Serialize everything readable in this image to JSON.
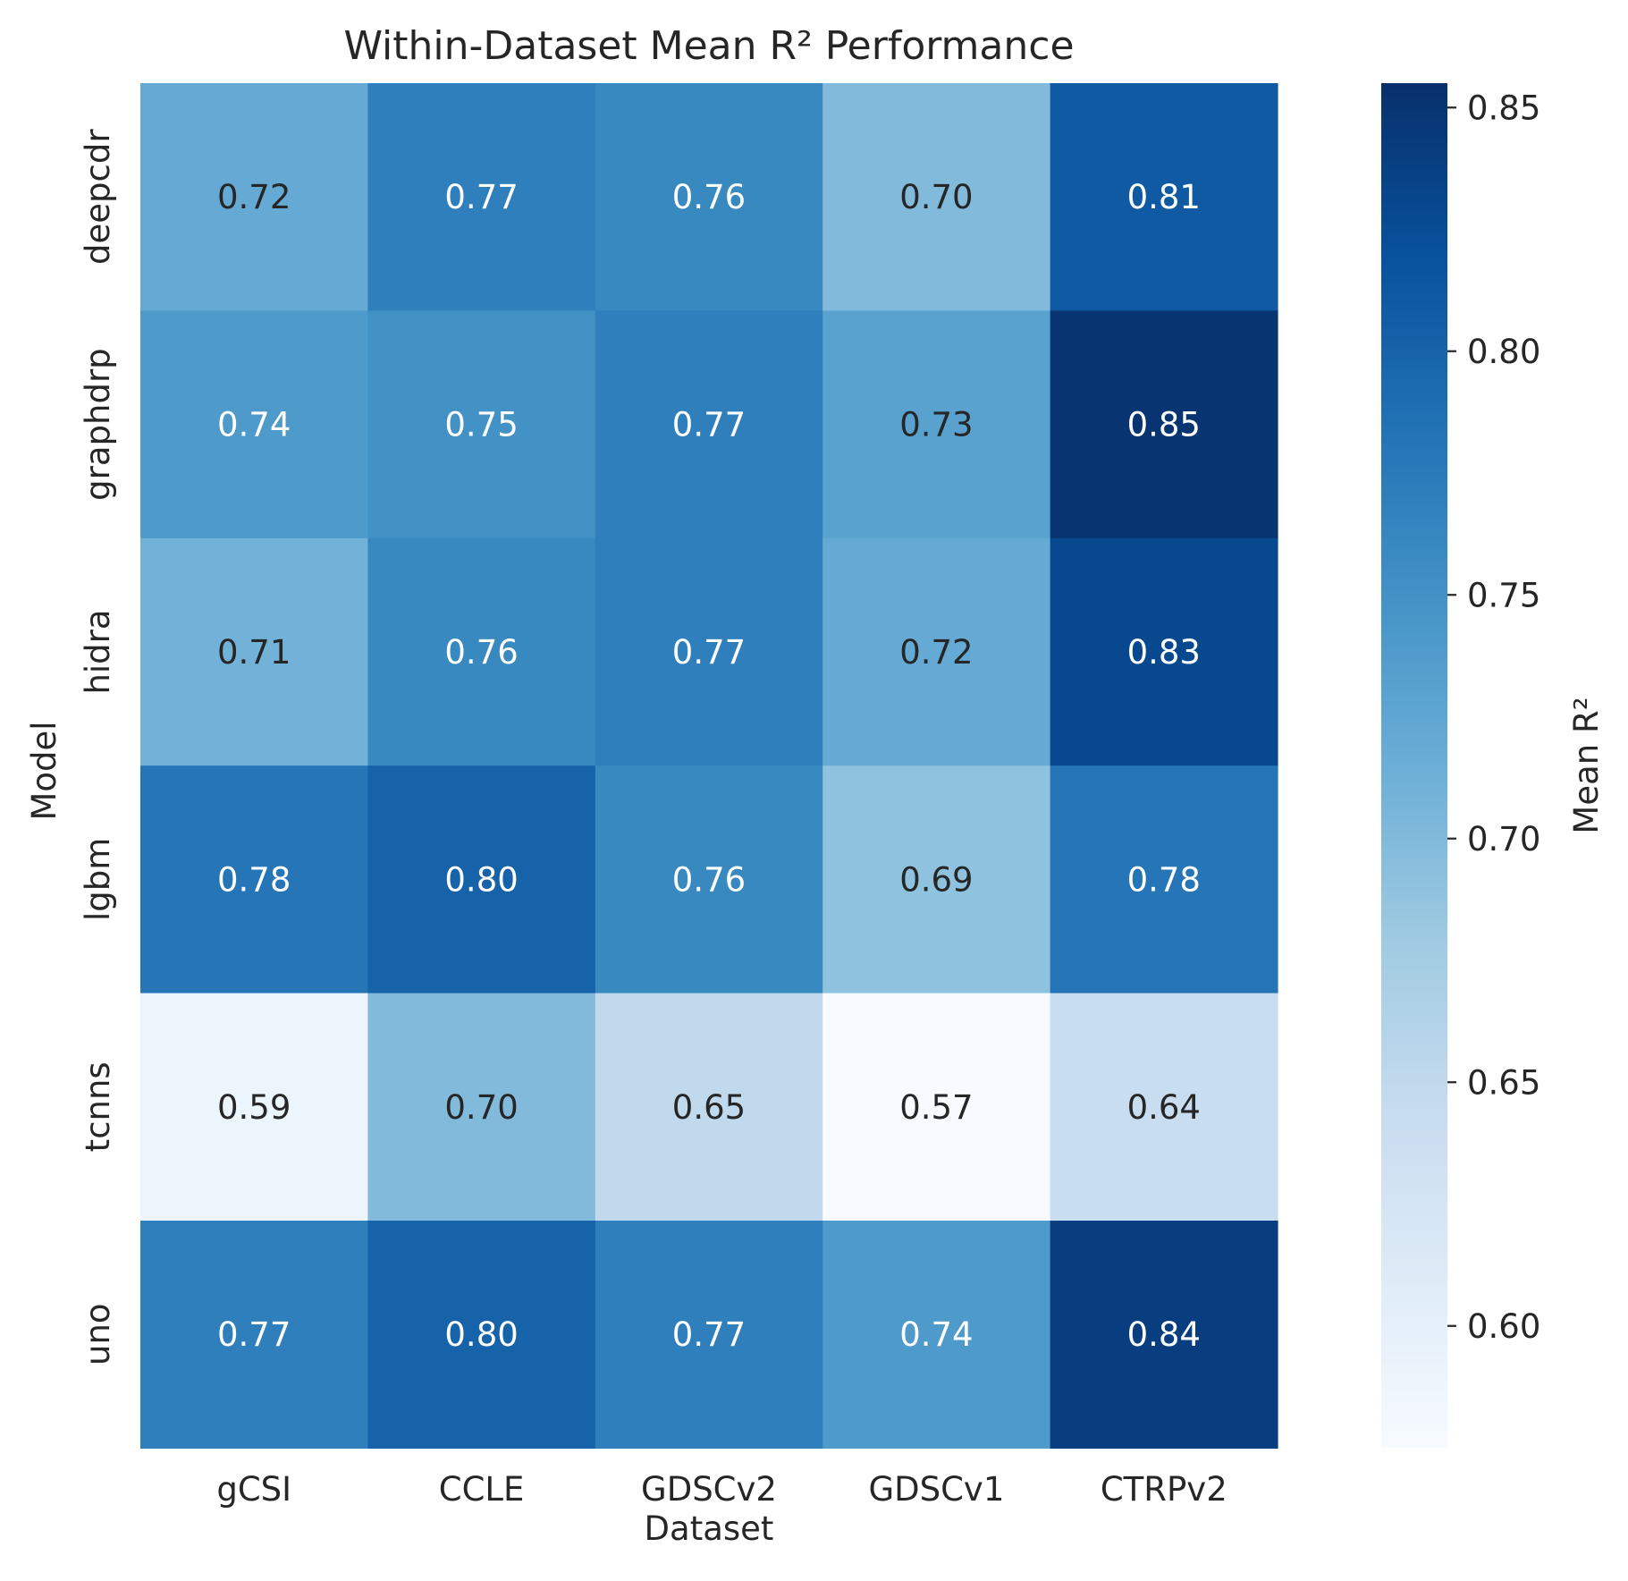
{
  "chart_data": {
    "type": "heatmap",
    "title": "Within-Dataset Mean R² Performance",
    "xlabel": "Dataset",
    "ylabel": "Model",
    "colorbar_label": "Mean R²",
    "x_categories": [
      "gCSI",
      "CCLE",
      "GDSCv2",
      "GDSCv1",
      "CTRPv2"
    ],
    "y_categories": [
      "deepcdr",
      "graphdrp",
      "hidra",
      "lgbm",
      "tcnns",
      "uno"
    ],
    "values": [
      [
        0.72,
        0.77,
        0.76,
        0.7,
        0.81
      ],
      [
        0.74,
        0.75,
        0.77,
        0.73,
        0.85
      ],
      [
        0.71,
        0.76,
        0.77,
        0.72,
        0.83
      ],
      [
        0.78,
        0.8,
        0.76,
        0.69,
        0.78
      ],
      [
        0.59,
        0.7,
        0.65,
        0.57,
        0.64
      ],
      [
        0.77,
        0.8,
        0.77,
        0.74,
        0.84
      ]
    ],
    "annotations": [
      [
        "0.72",
        "0.77",
        "0.76",
        "0.70",
        "0.81"
      ],
      [
        "0.74",
        "0.75",
        "0.77",
        "0.73",
        "0.85"
      ],
      [
        "0.71",
        "0.76",
        "0.77",
        "0.72",
        "0.83"
      ],
      [
        "0.78",
        "0.80",
        "0.76",
        "0.69",
        "0.78"
      ],
      [
        "0.59",
        "0.70",
        "0.65",
        "0.57",
        "0.64"
      ],
      [
        "0.77",
        "0.80",
        "0.77",
        "0.74",
        "0.84"
      ]
    ],
    "colormap": "Blues",
    "colormap_stops": [
      "#f7fbff",
      "#deebf7",
      "#c6dbef",
      "#9ecae1",
      "#6baed6",
      "#4292c6",
      "#2171b5",
      "#08519c",
      "#08306b"
    ],
    "vmin": 0.575,
    "vmax": 0.855,
    "colorbar_ticks": [
      0.6,
      0.65,
      0.7,
      0.75,
      0.8,
      0.85
    ],
    "colorbar_tick_labels": [
      "0.60",
      "0.65",
      "0.70",
      "0.75",
      "0.80",
      "0.85"
    ],
    "light_text_color": "#ffffff",
    "dark_text_color": "#262626",
    "axis_text_color": "#262626",
    "grid": false,
    "legend": "colorbar-right"
  }
}
